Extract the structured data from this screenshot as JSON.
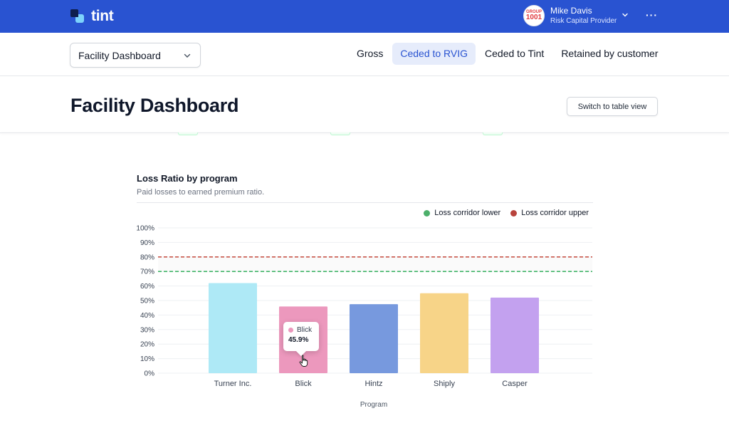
{
  "app": {
    "brand": "tint",
    "accent": "#2953d1"
  },
  "user": {
    "avatar_top": "GROUP",
    "avatar_bottom": "1001",
    "name": "Mike Davis",
    "role": "Risk Capital Provider"
  },
  "subnav": {
    "dashboard_select": "Facility Dashboard",
    "tabs": [
      {
        "label": "Gross",
        "active": false
      },
      {
        "label": "Ceded to RVIG",
        "active": true
      },
      {
        "label": "Ceded to Tint",
        "active": false
      },
      {
        "label": "Retained by customer",
        "active": false
      }
    ]
  },
  "header": {
    "title": "Facility Dashboard",
    "switch_button": "Switch to table view"
  },
  "chart": {
    "legend": [
      {
        "label": "Loss corridor lower",
        "color": "#22a94f"
      },
      {
        "label": "Loss corridor upper",
        "color": "#c0392b"
      }
    ],
    "tooltip": {
      "label": "Blick",
      "value": "45.9%"
    }
  },
  "chart_data": {
    "type": "bar",
    "title": "Loss Ratio by program",
    "subtitle": "Paid losses to earned premium ratio.",
    "xlabel": "Program",
    "ylabel": "",
    "categories": [
      "Turner Inc.",
      "Blick",
      "Hintz",
      "Shiply",
      "Casper"
    ],
    "values": [
      62.0,
      45.9,
      47.5,
      55.0,
      52.0
    ],
    "colors": [
      "#aee9f6",
      "#ec98bd",
      "#7799de",
      "#f7d488",
      "#c3a1ef"
    ],
    "ylim": [
      0,
      100
    ],
    "yticks": [
      "0%",
      "10%",
      "20%",
      "30%",
      "40%",
      "50%",
      "60%",
      "70%",
      "80%",
      "90%",
      "100%"
    ],
    "reference_lines": [
      {
        "name": "Loss corridor lower",
        "value": 70,
        "color": "#22a94f"
      },
      {
        "name": "Loss corridor upper",
        "value": 80,
        "color": "#c0392b"
      }
    ],
    "grid": true,
    "legend_position": "top-right"
  }
}
